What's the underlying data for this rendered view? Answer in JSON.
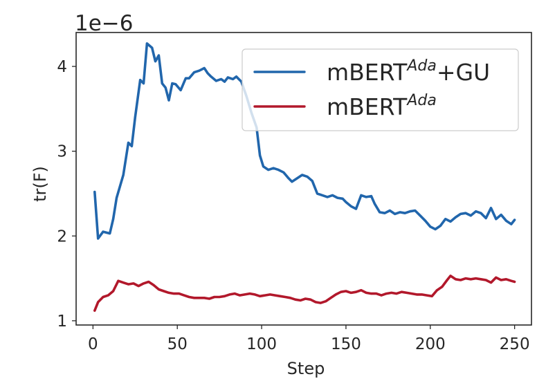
{
  "chart_data": {
    "type": "line",
    "xlabel": "Step",
    "ylabel": "tr(F)",
    "y_offset_label": "1e−6",
    "xlim": [
      -10,
      260
    ],
    "ylim": [
      0.95,
      4.4
    ],
    "xticks": [
      0,
      50,
      100,
      150,
      200,
      250
    ],
    "yticks": [
      1,
      2,
      3,
      4
    ],
    "x_tick_labels": [
      "0",
      "50",
      "100",
      "150",
      "200",
      "250"
    ],
    "y_tick_labels": [
      "1",
      "2",
      "3",
      "4"
    ],
    "grid": false,
    "legend_position": "upper-right",
    "colors": {
      "series_blue": "#2166ac",
      "series_red": "#b2182b",
      "axes": "#262626"
    },
    "series": [
      {
        "legend_base": "mBERT",
        "legend_sup": "Ada",
        "legend_suffix": "+GU",
        "color": "#2166ac",
        "points": [
          [
            1,
            2.52
          ],
          [
            3,
            1.97
          ],
          [
            6,
            2.05
          ],
          [
            10,
            2.03
          ],
          [
            12,
            2.2
          ],
          [
            14,
            2.45
          ],
          [
            18,
            2.72
          ],
          [
            21,
            3.1
          ],
          [
            23,
            3.06
          ],
          [
            25,
            3.4
          ],
          [
            28,
            3.84
          ],
          [
            30,
            3.8
          ],
          [
            32,
            4.27
          ],
          [
            35,
            4.22
          ],
          [
            37,
            4.06
          ],
          [
            39,
            4.13
          ],
          [
            41,
            3.8
          ],
          [
            43,
            3.75
          ],
          [
            45,
            3.6
          ],
          [
            47,
            3.8
          ],
          [
            49,
            3.79
          ],
          [
            52,
            3.72
          ],
          [
            55,
            3.86
          ],
          [
            57,
            3.86
          ],
          [
            60,
            3.93
          ],
          [
            63,
            3.95
          ],
          [
            66,
            3.98
          ],
          [
            68,
            3.92
          ],
          [
            70,
            3.88
          ],
          [
            73,
            3.83
          ],
          [
            76,
            3.85
          ],
          [
            78,
            3.82
          ],
          [
            80,
            3.87
          ],
          [
            83,
            3.85
          ],
          [
            85,
            3.88
          ],
          [
            88,
            3.82
          ],
          [
            91,
            3.65
          ],
          [
            94,
            3.45
          ],
          [
            97,
            3.28
          ],
          [
            99,
            2.95
          ],
          [
            101,
            2.82
          ],
          [
            104,
            2.78
          ],
          [
            107,
            2.8
          ],
          [
            110,
            2.78
          ],
          [
            113,
            2.75
          ],
          [
            116,
            2.68
          ],
          [
            118,
            2.64
          ],
          [
            121,
            2.68
          ],
          [
            124,
            2.72
          ],
          [
            127,
            2.7
          ],
          [
            130,
            2.65
          ],
          [
            133,
            2.5
          ],
          [
            136,
            2.48
          ],
          [
            139,
            2.46
          ],
          [
            142,
            2.48
          ],
          [
            145,
            2.45
          ],
          [
            148,
            2.44
          ],
          [
            150,
            2.4
          ],
          [
            153,
            2.35
          ],
          [
            156,
            2.32
          ],
          [
            159,
            2.48
          ],
          [
            162,
            2.46
          ],
          [
            165,
            2.47
          ],
          [
            167,
            2.38
          ],
          [
            170,
            2.28
          ],
          [
            173,
            2.27
          ],
          [
            176,
            2.3
          ],
          [
            179,
            2.26
          ],
          [
            182,
            2.28
          ],
          [
            185,
            2.27
          ],
          [
            188,
            2.29
          ],
          [
            191,
            2.3
          ],
          [
            194,
            2.24
          ],
          [
            197,
            2.18
          ],
          [
            200,
            2.11
          ],
          [
            203,
            2.08
          ],
          [
            206,
            2.12
          ],
          [
            209,
            2.2
          ],
          [
            212,
            2.17
          ],
          [
            215,
            2.22
          ],
          [
            218,
            2.26
          ],
          [
            221,
            2.27
          ],
          [
            224,
            2.24
          ],
          [
            227,
            2.29
          ],
          [
            230,
            2.27
          ],
          [
            233,
            2.21
          ],
          [
            236,
            2.33
          ],
          [
            239,
            2.2
          ],
          [
            242,
            2.25
          ],
          [
            245,
            2.18
          ],
          [
            248,
            2.14
          ],
          [
            250,
            2.19
          ]
        ]
      },
      {
        "legend_base": "mBERT",
        "legend_sup": "Ada",
        "legend_suffix": "",
        "color": "#b2182b",
        "points": [
          [
            1,
            1.12
          ],
          [
            3,
            1.22
          ],
          [
            6,
            1.28
          ],
          [
            9,
            1.3
          ],
          [
            12,
            1.35
          ],
          [
            15,
            1.47
          ],
          [
            18,
            1.45
          ],
          [
            21,
            1.43
          ],
          [
            24,
            1.44
          ],
          [
            27,
            1.41
          ],
          [
            30,
            1.44
          ],
          [
            33,
            1.46
          ],
          [
            36,
            1.42
          ],
          [
            39,
            1.37
          ],
          [
            42,
            1.35
          ],
          [
            45,
            1.33
          ],
          [
            48,
            1.32
          ],
          [
            51,
            1.32
          ],
          [
            54,
            1.3
          ],
          [
            57,
            1.28
          ],
          [
            60,
            1.27
          ],
          [
            63,
            1.27
          ],
          [
            66,
            1.27
          ],
          [
            69,
            1.26
          ],
          [
            72,
            1.28
          ],
          [
            75,
            1.28
          ],
          [
            78,
            1.29
          ],
          [
            81,
            1.31
          ],
          [
            84,
            1.32
          ],
          [
            87,
            1.3
          ],
          [
            90,
            1.31
          ],
          [
            93,
            1.32
          ],
          [
            96,
            1.31
          ],
          [
            99,
            1.29
          ],
          [
            102,
            1.3
          ],
          [
            105,
            1.31
          ],
          [
            108,
            1.3
          ],
          [
            111,
            1.29
          ],
          [
            114,
            1.28
          ],
          [
            117,
            1.27
          ],
          [
            120,
            1.25
          ],
          [
            123,
            1.24
          ],
          [
            126,
            1.26
          ],
          [
            129,
            1.25
          ],
          [
            132,
            1.22
          ],
          [
            135,
            1.21
          ],
          [
            138,
            1.23
          ],
          [
            141,
            1.27
          ],
          [
            144,
            1.31
          ],
          [
            147,
            1.34
          ],
          [
            150,
            1.35
          ],
          [
            153,
            1.33
          ],
          [
            156,
            1.34
          ],
          [
            159,
            1.36
          ],
          [
            162,
            1.33
          ],
          [
            165,
            1.32
          ],
          [
            168,
            1.32
          ],
          [
            171,
            1.3
          ],
          [
            174,
            1.32
          ],
          [
            177,
            1.33
          ],
          [
            180,
            1.32
          ],
          [
            183,
            1.34
          ],
          [
            186,
            1.33
          ],
          [
            189,
            1.32
          ],
          [
            192,
            1.31
          ],
          [
            195,
            1.31
          ],
          [
            198,
            1.3
          ],
          [
            201,
            1.29
          ],
          [
            204,
            1.36
          ],
          [
            207,
            1.4
          ],
          [
            210,
            1.48
          ],
          [
            212,
            1.53
          ],
          [
            215,
            1.49
          ],
          [
            218,
            1.48
          ],
          [
            221,
            1.5
          ],
          [
            224,
            1.49
          ],
          [
            227,
            1.5
          ],
          [
            230,
            1.49
          ],
          [
            233,
            1.48
          ],
          [
            236,
            1.45
          ],
          [
            239,
            1.51
          ],
          [
            242,
            1.48
          ],
          [
            245,
            1.49
          ],
          [
            248,
            1.47
          ],
          [
            250,
            1.46
          ]
        ]
      }
    ]
  }
}
